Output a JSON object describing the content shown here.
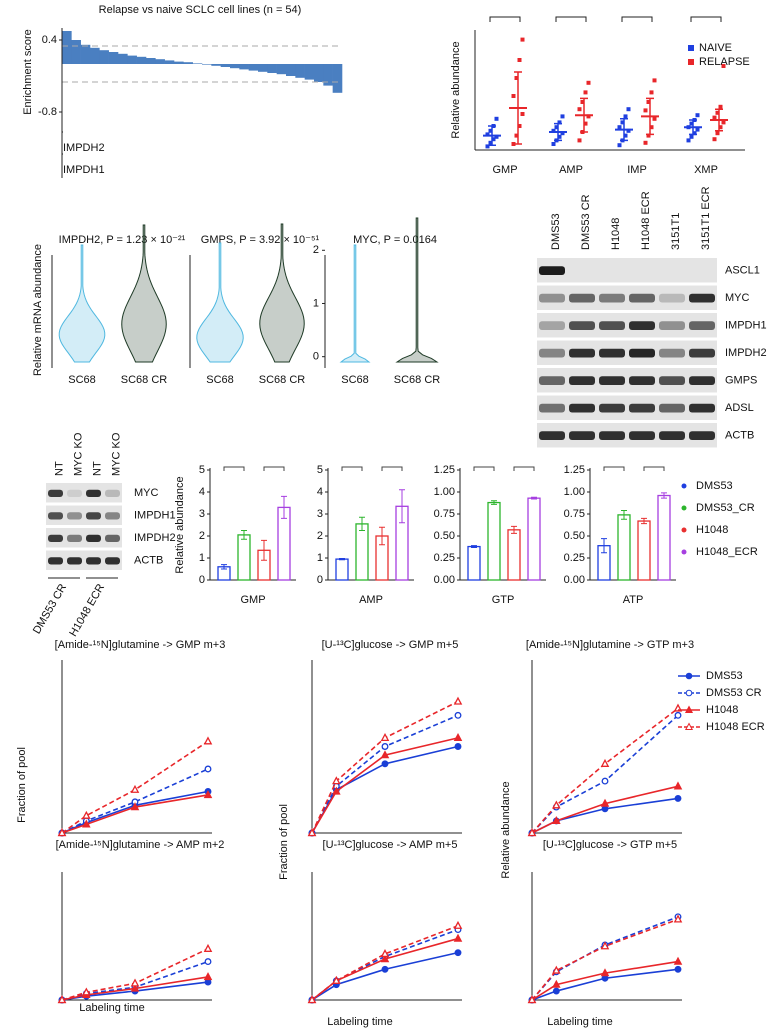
{
  "chart_data": [
    {
      "type": "waterfall",
      "title": "Relapse vs naive SCLC cell lines (n = 54)",
      "y_label": "Enrichment score",
      "values": [
        0.55,
        0.4,
        0.32,
        0.27,
        0.23,
        0.2,
        0.17,
        0.14,
        0.12,
        0.1,
        0.08,
        0.06,
        0.04,
        0.03,
        0.01,
        -0.01,
        -0.03,
        -0.05,
        -0.07,
        -0.09,
        -0.11,
        -0.13,
        -0.15,
        -0.17,
        -0.2,
        -0.23,
        -0.26,
        -0.3,
        -0.36,
        -0.48
      ],
      "color": "#4a7fc1",
      "ylim": [
        -0.9,
        0.6
      ],
      "yticks": [
        0.4,
        -0.8
      ],
      "reference_lines": [
        0.3,
        -0.3
      ],
      "annotations": [
        "IMPDH2",
        "IMPDH1"
      ]
    },
    {
      "type": "dot",
      "y_label": "Relative abundance",
      "categories": [
        "GMP",
        "AMP",
        "IMP",
        "XMP"
      ],
      "ylim": [
        0,
        10
      ],
      "legend": "upper right",
      "series": [
        {
          "name": "NAIVE",
          "color": "#1f3fe0",
          "values": [
            1.2,
            1.5,
            1.7,
            1.9
          ],
          "errors": [
            0.8,
            0.7,
            0.9,
            0.6
          ],
          "points": [
            [
              0.3,
              0.6,
              0.9,
              1.1,
              1.3,
              1.6,
              2.0,
              2.6
            ],
            [
              0.5,
              0.8,
              1.1,
              1.4,
              1.6,
              1.9,
              2.3,
              2.8
            ],
            [
              0.4,
              0.8,
              1.2,
              1.6,
              1.9,
              2.3,
              2.8,
              3.4
            ],
            [
              0.8,
              1.1,
              1.4,
              1.7,
              1.9,
              2.2,
              2.5,
              2.9
            ]
          ]
        },
        {
          "name": "RELAPSE",
          "color": "#e8262a",
          "values": [
            3.5,
            2.9,
            2.8,
            2.5
          ],
          "errors": [
            3.0,
            1.4,
            1.5,
            0.9
          ],
          "points": [
            [
              0.5,
              1.2,
              2.0,
              3.0,
              4.5,
              6.0,
              7.5,
              9.2
            ],
            [
              0.8,
              1.5,
              2.2,
              2.8,
              3.4,
              4.0,
              4.8,
              5.6
            ],
            [
              0.6,
              1.2,
              1.9,
              2.6,
              3.3,
              4.0,
              4.8,
              5.8
            ],
            [
              0.9,
              1.4,
              1.9,
              2.3,
              2.7,
              3.1,
              3.6,
              7.0
            ]
          ]
        }
      ]
    }
  ],
  "violins": {
    "y_label": "Relative mRNA abundance",
    "panels": [
      {
        "title": "IMPDH2, P = 1.23 × 10⁻²¹",
        "categories": [
          "SC68",
          "SC68 CR"
        ]
      },
      {
        "title": "GMPS, P = 3.92 × 10⁻⁵¹",
        "categories": [
          "SC68",
          "SC68 CR"
        ]
      },
      {
        "title": "MYC, P = 0.0164",
        "categories": [
          "SC68",
          "SC68 CR"
        ],
        "ylim": [
          -0.1,
          2.4
        ],
        "yticks": [
          0,
          1,
          2
        ]
      }
    ]
  },
  "blots": [
    {
      "columns": [
        "DMS53",
        "DMS53 CR",
        "H1048",
        "H1048 ECR",
        "3151T1",
        "3151T1 ECR"
      ],
      "rows": [
        "ASCL1",
        "MYC",
        "IMPDH1",
        "IMPDH2",
        "GMPS",
        "ADSL",
        "ACTB"
      ]
    },
    {
      "columns": [
        "NT",
        "MYC KO",
        "NT",
        "MYC KO"
      ],
      "rows": [
        "MYC",
        "IMPDH1",
        "IMPDH2",
        "ACTB"
      ],
      "groups": [
        "DMS53 CR",
        "H1048 ECR"
      ]
    }
  ],
  "bar_panel": {
    "y_label": "Relative abundance",
    "legend": [
      {
        "name": "DMS53",
        "color": "#1f3fe0"
      },
      {
        "name": "DMS53_CR",
        "color": "#2db52d"
      },
      {
        "name": "H1048",
        "color": "#e83030"
      },
      {
        "name": "H1048_ECR",
        "color": "#a63fe0"
      }
    ],
    "charts": [
      {
        "x_label": "GMP",
        "ylim": [
          0,
          5
        ],
        "yticks": [
          0,
          1,
          2,
          3,
          4,
          5
        ],
        "values": [
          0.6,
          2.05,
          1.35,
          3.3
        ],
        "errors": [
          0.1,
          0.2,
          0.45,
          0.5
        ]
      },
      {
        "x_label": "AMP",
        "ylim": [
          0,
          5
        ],
        "yticks": [
          0,
          1,
          2,
          3,
          4,
          5
        ],
        "values": [
          0.95,
          2.55,
          2.0,
          3.35
        ],
        "errors": [
          0.03,
          0.3,
          0.4,
          0.75
        ]
      },
      {
        "x_label": "GTP",
        "ylim": [
          0,
          1.25
        ],
        "yticks": [
          {
            "value": 0,
            "label": "0.00"
          },
          {
            "value": 0.25,
            "label": "0.25"
          },
          {
            "value": 0.5,
            "label": "0.50"
          },
          {
            "value": 0.75,
            "label": "0.75"
          },
          {
            "value": 1,
            "label": "1.00"
          },
          1.25
        ],
        "values": [
          0.38,
          0.88,
          0.57,
          0.93
        ],
        "errors": [
          0.01,
          0.02,
          0.04,
          0.01
        ]
      },
      {
        "x_label": "ATP",
        "ylim": [
          0,
          1.25
        ],
        "yticks": [
          {
            "value": 0,
            "label": "0.00"
          },
          {
            "value": 0.25,
            "label": "0.25"
          },
          {
            "value": 0.5,
            "label": "0.50"
          },
          {
            "value": 0.75,
            "label": "0.75"
          },
          {
            "value": 1,
            "label": "1.00"
          },
          1.25
        ],
        "values": [
          0.39,
          0.74,
          0.67,
          0.96
        ],
        "errors": [
          0.08,
          0.05,
          0.03,
          0.03
        ]
      }
    ]
  },
  "line_panel": {
    "x": [
      0,
      1,
      3,
      6
    ],
    "xlim": [
      0,
      6
    ],
    "ylim": [
      0,
      1
    ],
    "y_labels": [
      "Fraction of pool",
      "Fraction of pool",
      "Relative abundance"
    ],
    "x_labels": [
      "Labeling time",
      "Labeling time",
      "Labeling time"
    ],
    "legend": [
      {
        "name": "DMS53",
        "color": "#1a3fd6",
        "dashed": false,
        "marker": "circle",
        "filled": true
      },
      {
        "name": "DMS53 CR",
        "color": "#1a3fd6",
        "dashed": true,
        "marker": "circle",
        "filled": false
      },
      {
        "name": "H1048",
        "color": "#e8262a",
        "dashed": false,
        "marker": "triangle",
        "filled": true
      },
      {
        "name": "H1048 ECR",
        "color": "#e8262a",
        "dashed": true,
        "marker": "triangle",
        "filled": false
      }
    ],
    "charts": [
      {
        "title": "[Amide-¹⁵N]glutamine -> GMP m+3",
        "series": [
          [
            0,
            0.06,
            0.16,
            0.24
          ],
          [
            0,
            0.07,
            0.18,
            0.37
          ],
          [
            0,
            0.05,
            0.15,
            0.22
          ],
          [
            0,
            0.1,
            0.25,
            0.53
          ]
        ]
      },
      {
        "title": "[U-¹³C]glucose -> GMP m+5",
        "series": [
          [
            0,
            0.25,
            0.4,
            0.5
          ],
          [
            0,
            0.27,
            0.5,
            0.68
          ],
          [
            0,
            0.24,
            0.45,
            0.55
          ],
          [
            0,
            0.3,
            0.55,
            0.76
          ]
        ]
      },
      {
        "title": "[Amide-¹⁵N]glutamine -> GTP m+3",
        "series": [
          [
            0,
            0.07,
            0.14,
            0.2
          ],
          [
            0,
            0.15,
            0.3,
            0.68
          ],
          [
            0,
            0.07,
            0.17,
            0.27
          ],
          [
            0,
            0.16,
            0.4,
            0.72
          ]
        ]
      },
      {
        "title": "[Amide-¹⁵N]glutamine -> AMP m+2",
        "series": [
          [
            0,
            0.03,
            0.07,
            0.14
          ],
          [
            0,
            0.05,
            0.1,
            0.3
          ],
          [
            0,
            0.04,
            0.09,
            0.18
          ],
          [
            0,
            0.06,
            0.13,
            0.4
          ]
        ]
      },
      {
        "title": "[U-¹³C]glucose -> AMP m+5",
        "series": [
          [
            0,
            0.12,
            0.24,
            0.37
          ],
          [
            0,
            0.15,
            0.34,
            0.55
          ],
          [
            0,
            0.15,
            0.32,
            0.48
          ],
          [
            0,
            0.15,
            0.36,
            0.58
          ]
        ]
      },
      {
        "title": "[U-¹³C]glucose -> GTP m+5",
        "series": [
          [
            0,
            0.07,
            0.17,
            0.24
          ],
          [
            0,
            0.22,
            0.43,
            0.65
          ],
          [
            0,
            0.12,
            0.21,
            0.3
          ],
          [
            0,
            0.23,
            0.42,
            0.63
          ]
        ]
      }
    ]
  }
}
